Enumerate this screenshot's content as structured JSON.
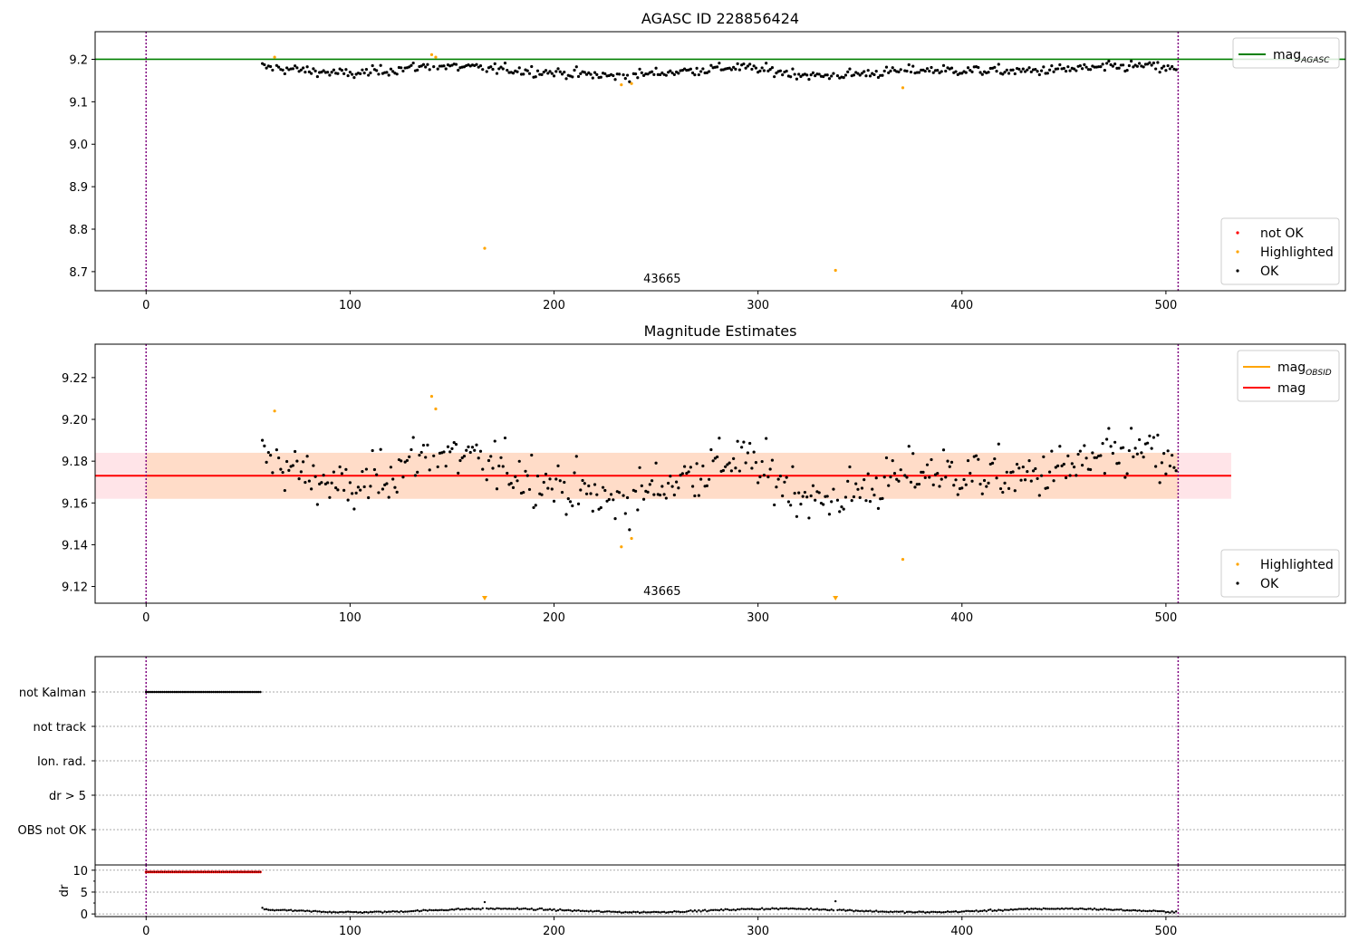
{
  "figure": {
    "panel1_title": "AGASC ID 228856424",
    "panel2_title": "Magnitude Estimates",
    "obsid_label": "43665"
  },
  "colors": {
    "ok": "#000000",
    "highlighted": "#ffa500",
    "not_ok": "#ff0000",
    "mag_agasc": "#008000",
    "mag_obsid": "#ffa500",
    "mag": "#ff0000",
    "band_inner": "#ffdcc8",
    "band_outer": "#ffe4e8",
    "obsid_boundary": "#800080"
  },
  "legends": {
    "p1_lines": [
      {
        "label": "mag",
        "sub": "AGASC",
        "color": "#008000"
      }
    ],
    "p1_markers": [
      {
        "label": "not OK",
        "color": "#ff0000"
      },
      {
        "label": "Highlighted",
        "color": "#ffa500"
      },
      {
        "label": "OK",
        "color": "#000000"
      }
    ],
    "p2_lines": [
      {
        "label": "mag",
        "sub": "OBSID",
        "color": "#ffa500"
      },
      {
        "label": "mag",
        "sub": "",
        "color": "#ff0000"
      }
    ],
    "p2_markers": [
      {
        "label": "Highlighted",
        "color": "#ffa500"
      },
      {
        "label": "OK",
        "color": "#000000"
      }
    ]
  },
  "chart_data": [
    {
      "type": "scatter",
      "title": "AGASC ID 228856424",
      "xlim": [
        -25,
        588
      ],
      "ylim": [
        8.655,
        9.265
      ],
      "xticks": [
        0,
        100,
        200,
        300,
        400,
        500
      ],
      "yticks": [
        8.7,
        8.8,
        8.9,
        9.0,
        9.1,
        9.2
      ],
      "grid": false,
      "legend": [
        "top-right",
        "bottom-right"
      ],
      "mag_agasc": 9.2,
      "obsid_boundaries": [
        0,
        506
      ],
      "obsid_label": "43665",
      "ok_series": {
        "x_start": 57,
        "x_end": 505,
        "mean": 9.173,
        "trend": [
          [
            57,
            9.182
          ],
          [
            100,
            9.165
          ],
          [
            140,
            9.185
          ],
          [
            180,
            9.175
          ],
          [
            230,
            9.16
          ],
          [
            290,
            9.182
          ],
          [
            330,
            9.16
          ],
          [
            380,
            9.175
          ],
          [
            430,
            9.172
          ],
          [
            490,
            9.185
          ],
          [
            505,
            9.175
          ]
        ]
      },
      "highlighted": [
        [
          63,
          9.205
        ],
        [
          140,
          9.211
        ],
        [
          142,
          9.205
        ],
        [
          166,
          8.755
        ],
        [
          233,
          9.14
        ],
        [
          238,
          9.143
        ],
        [
          338,
          8.703
        ],
        [
          371,
          9.133
        ]
      ]
    },
    {
      "type": "scatter",
      "title": "Magnitude Estimates",
      "xlim": [
        -25,
        588
      ],
      "ylim": [
        9.112,
        9.236
      ],
      "xticks": [
        0,
        100,
        200,
        300,
        400,
        500
      ],
      "yticks": [
        9.12,
        9.14,
        9.16,
        9.18,
        9.2,
        9.22
      ],
      "grid": false,
      "legend": [
        "top-right",
        "bottom-right"
      ],
      "mag": 9.173,
      "mag_band_inner": [
        9.162,
        9.184
      ],
      "mag_band_outer": [
        9.162,
        9.184
      ],
      "band_x_end": 532,
      "obsid_boundaries": [
        0,
        506
      ],
      "obsid_label": "43665",
      "highlighted": [
        [
          63,
          9.204
        ],
        [
          140,
          9.211
        ],
        [
          142,
          9.205
        ],
        [
          233,
          9.139
        ],
        [
          238,
          9.143
        ],
        [
          371,
          9.133
        ]
      ],
      "off_scale_highlighted": [
        166,
        338
      ]
    },
    {
      "type": "scatter",
      "xlim": [
        -25,
        588
      ],
      "flag_categories": [
        "not Kalman",
        "not track",
        "Ion. rad.",
        "dr > 5",
        "OBS not OK"
      ],
      "not_kalman_range": [
        0,
        56
      ],
      "obsid_boundaries": [
        0,
        506
      ]
    },
    {
      "type": "scatter",
      "xlim": [
        -25,
        588
      ],
      "ylim": [
        -0.6,
        11.2
      ],
      "ylabel": "dr",
      "yticks": [
        0,
        5,
        10
      ],
      "xticks": [
        0,
        100,
        200,
        300,
        400,
        500
      ],
      "red_range": [
        0,
        56
      ],
      "red_value": 9.6,
      "dr_series": {
        "x_start": 57,
        "x_end": 505,
        "mean": 0.8
      },
      "dr_spikes": [
        [
          57,
          1.4
        ],
        [
          166,
          2.7
        ],
        [
          338,
          2.9
        ]
      ],
      "obsid_boundaries": [
        0,
        506
      ]
    }
  ]
}
